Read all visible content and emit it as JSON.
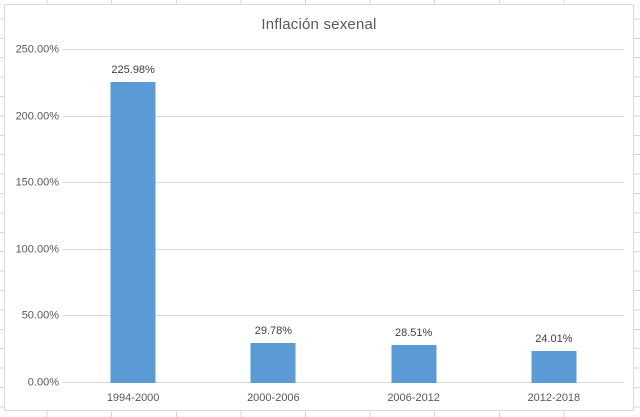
{
  "chart_data": {
    "type": "bar",
    "title": "Inflación sexenal",
    "categories": [
      "1994-2000",
      "2000-2006",
      "2006-2012",
      "2012-2018"
    ],
    "values": [
      225.98,
      29.78,
      28.51,
      24.01
    ],
    "value_labels": [
      "225.98%",
      "29.78%",
      "28.51%",
      "24.01%"
    ],
    "ylim": [
      0,
      250
    ],
    "yticks": [
      {
        "value": 0,
        "label": "0.00%"
      },
      {
        "value": 50,
        "label": "50.00%"
      },
      {
        "value": 100,
        "label": "100.00%"
      },
      {
        "value": 150,
        "label": "150.00%"
      },
      {
        "value": 200,
        "label": "200.00%"
      },
      {
        "value": 250,
        "label": "250.00%"
      }
    ],
    "grid": true,
    "legend": "none",
    "xlabel": "",
    "ylabel": "",
    "bar_color": "#5B9BD5",
    "gridline_color": "#D9D9D9",
    "title_color": "#595959",
    "axis_text_color": "#595959",
    "data_label_color": "#404040"
  },
  "chart_frame": {
    "background": "#FFFFFF",
    "border_color": "#D9D9D9"
  },
  "spreadsheet": {
    "cell_gridline_color": "#D8D8D8"
  }
}
